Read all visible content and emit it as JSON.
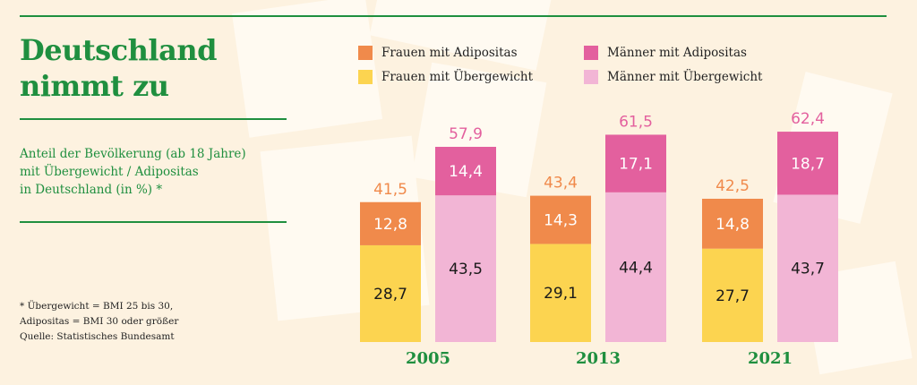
{
  "title_lines": [
    "Deutschland",
    "nimmt zu"
  ],
  "subtitle_lines": [
    "Anteil der Bevölkerung (ab 18 Jahre)",
    "mit Übergewicht / Adipositas",
    "in Deutschland (in %) *"
  ],
  "footnote_lines": [
    "* Übergewicht = BMI 25 bis 30,",
    "Adipositas = BMI 30 oder größer",
    "Quelle: Statistisches Bundesamt"
  ],
  "colors": {
    "background": "#fdf2e0",
    "accent_green": "#1f8f3f",
    "frauen_adipositas": "#f08a4b",
    "frauen_uebergewicht": "#fcd450",
    "maenner_adipositas": "#e3609e",
    "maenner_uebergewicht": "#f2b5d5"
  },
  "legend": [
    {
      "label": "Frauen mit Adipositas",
      "color": "#f08a4b"
    },
    {
      "label": "Männer mit Adipositas",
      "color": "#e3609e"
    },
    {
      "label": "Frauen mit Übergewicht",
      "color": "#fcd450"
    },
    {
      "label": "Männer mit Übergewicht",
      "color": "#f2b5d5"
    }
  ],
  "chart_data": {
    "type": "bar",
    "stacked": true,
    "title": "Deutschland nimmt zu",
    "categories": [
      "2005",
      "2013",
      "2021"
    ],
    "groups": [
      {
        "name": "Frauen",
        "total_labels": [
          "41,5",
          "43,4",
          "42,5"
        ],
        "total_color": "#f08a4b",
        "series": [
          {
            "name": "Frauen mit Übergewicht",
            "values": [
              28.7,
              29.1,
              27.7
            ],
            "labels": [
              "28,7",
              "29,1",
              "27,7"
            ],
            "color": "#fcd450"
          },
          {
            "name": "Frauen mit Adipositas",
            "values": [
              12.8,
              14.3,
              14.8
            ],
            "labels": [
              "12,8",
              "14,3",
              "14,8"
            ],
            "color": "#f08a4b"
          }
        ]
      },
      {
        "name": "Männer",
        "total_labels": [
          "57,9",
          "61,5",
          "62,4"
        ],
        "total_color": "#e3609e",
        "series": [
          {
            "name": "Männer mit Übergewicht",
            "values": [
              43.5,
              44.4,
              43.7
            ],
            "labels": [
              "43,5",
              "44,4",
              "43,7"
            ],
            "color": "#f2b5d5"
          },
          {
            "name": "Männer mit Adipositas",
            "values": [
              14.4,
              17.1,
              18.7
            ],
            "labels": [
              "14,4",
              "17,1",
              "18,7"
            ],
            "color": "#e3609e"
          }
        ]
      }
    ],
    "ylim": [
      0,
      62.4
    ],
    "grid": false,
    "legend_position": "top"
  }
}
